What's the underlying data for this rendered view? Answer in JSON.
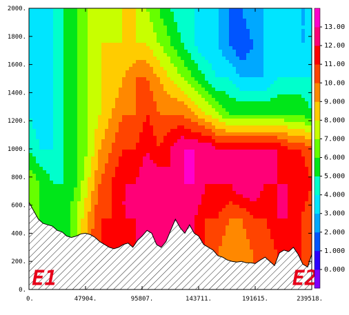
{
  "chart_data": {
    "type": "heatmap",
    "title": "",
    "xlabel": "",
    "ylabel": "",
    "xlim": [
      0,
      239518
    ],
    "ylim": [
      0,
      2000
    ],
    "x_tick_values": [
      0,
      47904,
      95807,
      143711,
      191615,
      239518
    ],
    "x_tick_labels": [
      "0.",
      "47904.",
      "95807.",
      "143711.",
      "191615.",
      "239518."
    ],
    "y_tick_values": [
      0,
      200,
      400,
      600,
      800,
      1000,
      1200,
      1400,
      1600,
      1800,
      2000
    ],
    "y_tick_labels": [
      "0.",
      "200.",
      "400.",
      "600.",
      "800.",
      "1000.",
      "1200.",
      "1400.",
      "1600.",
      "1800.",
      "2000."
    ],
    "annotations": [
      {
        "text": "E1",
        "x": 2500,
        "y": 100,
        "color": "#e6001a"
      },
      {
        "text": "E2",
        "x": 223000,
        "y": 100,
        "color": "#e6001a"
      }
    ],
    "colorbar": {
      "levels": [
        0,
        1,
        2,
        3,
        4,
        5,
        6,
        7,
        8,
        9,
        10,
        11,
        12,
        13
      ],
      "tick_labels": [
        "0.000",
        "1.000",
        "2.000",
        "3.000",
        "4.000",
        "5.000",
        "6.000",
        "7.000",
        "8.000",
        "9.000",
        "10.00",
        "11.00",
        "12.00",
        "13.00"
      ],
      "colors": [
        "#7f00ff",
        "#2a00ff",
        "#0055ff",
        "#00a8ff",
        "#00e5ff",
        "#00ffcc",
        "#00e619",
        "#66ff00",
        "#c8ff00",
        "#ffcc00",
        "#ff8800",
        "#ff4400",
        "#ff0000",
        "#ff0077",
        "#ff00cc"
      ]
    },
    "terrain": {
      "x": [
        0,
        4000,
        8000,
        12000,
        16000,
        20000,
        24000,
        28000,
        32000,
        36000,
        40000,
        44000,
        47904,
        52000,
        56000,
        60000,
        64000,
        68000,
        72000,
        76000,
        80000,
        84000,
        88000,
        92000,
        95807,
        100000,
        104000,
        108000,
        112000,
        116000,
        120000,
        124000,
        128000,
        132000,
        136000,
        140000,
        143711,
        148000,
        152000,
        156000,
        160000,
        164000,
        168000,
        172000,
        176000,
        180000,
        184000,
        188000,
        191615,
        196000,
        200000,
        204000,
        208000,
        212000,
        216000,
        220000,
        224000,
        228000,
        232000,
        236000,
        239518
      ],
      "y": [
        620,
        560,
        500,
        470,
        460,
        450,
        420,
        410,
        380,
        370,
        380,
        395,
        400,
        390,
        370,
        340,
        320,
        300,
        290,
        300,
        320,
        330,
        300,
        350,
        380,
        420,
        400,
        320,
        300,
        340,
        420,
        500,
        440,
        400,
        460,
        400,
        380,
        320,
        300,
        280,
        240,
        230,
        210,
        200,
        195,
        200,
        190,
        190,
        185,
        210,
        230,
        200,
        170,
        260,
        280,
        270,
        300,
        250,
        180,
        160,
        250
      ]
    },
    "field": {
      "columns_x": [
        0,
        10000,
        20000,
        30000,
        40000,
        50000,
        60000,
        70000,
        80000,
        90000,
        100000,
        110000,
        120000,
        130000,
        140000,
        150000,
        160000,
        170000,
        180000,
        190000,
        200000,
        210000,
        220000,
        230000,
        239518
      ],
      "rows_y": [
        0,
        250,
        500,
        750,
        1000,
        1250,
        1500,
        1750,
        2000
      ],
      "values": [
        [
          6,
          5,
          5,
          5,
          7,
          10,
          11,
          11,
          11,
          12,
          12,
          12,
          12,
          12,
          12,
          11,
          10,
          9,
          9,
          10,
          10,
          11,
          12,
          11,
          10
        ],
        [
          6,
          5,
          5,
          5,
          7,
          10,
          11,
          11,
          11,
          12,
          12,
          12,
          12,
          12,
          12,
          11,
          10,
          9,
          9,
          10,
          10,
          11,
          12,
          11,
          10
        ],
        [
          7,
          6,
          5,
          5,
          7,
          9,
          11,
          11,
          12,
          12,
          13,
          12,
          12,
          12,
          12,
          11,
          11,
          10,
          10,
          11,
          11,
          12,
          12,
          11,
          10
        ],
        [
          7,
          6,
          5,
          5,
          6,
          8,
          10,
          11,
          12,
          12,
          13,
          13,
          12,
          13,
          13,
          12,
          12,
          12,
          13,
          13,
          12,
          12,
          12,
          12,
          11
        ],
        [
          5,
          4,
          4,
          5,
          6,
          7,
          9,
          10,
          11,
          11,
          12,
          11,
          12,
          13,
          13,
          13,
          12,
          12,
          12,
          12,
          12,
          12,
          11,
          11,
          10
        ],
        [
          4,
          3,
          4,
          5,
          6,
          7,
          8,
          9,
          10,
          10,
          11,
          10,
          10,
          10,
          9,
          8,
          7,
          6,
          6,
          6,
          6,
          6,
          6,
          6,
          5
        ],
        [
          3,
          3,
          4,
          5,
          6,
          7,
          8,
          8,
          9,
          10,
          10,
          9,
          8,
          7,
          6,
          5,
          4,
          4,
          3,
          3,
          3,
          4,
          4,
          4,
          4
        ],
        [
          3,
          3,
          4,
          5,
          6,
          7,
          8,
          8,
          8,
          8,
          8,
          7,
          6,
          5,
          4,
          3,
          3,
          2,
          1,
          2,
          3,
          3,
          3,
          3,
          3
        ],
        [
          3,
          3,
          4,
          5,
          6,
          7,
          7,
          7,
          8,
          8,
          7,
          6,
          5,
          4,
          4,
          3,
          3,
          2,
          2,
          3,
          3,
          3,
          3,
          3,
          3
        ]
      ]
    }
  }
}
